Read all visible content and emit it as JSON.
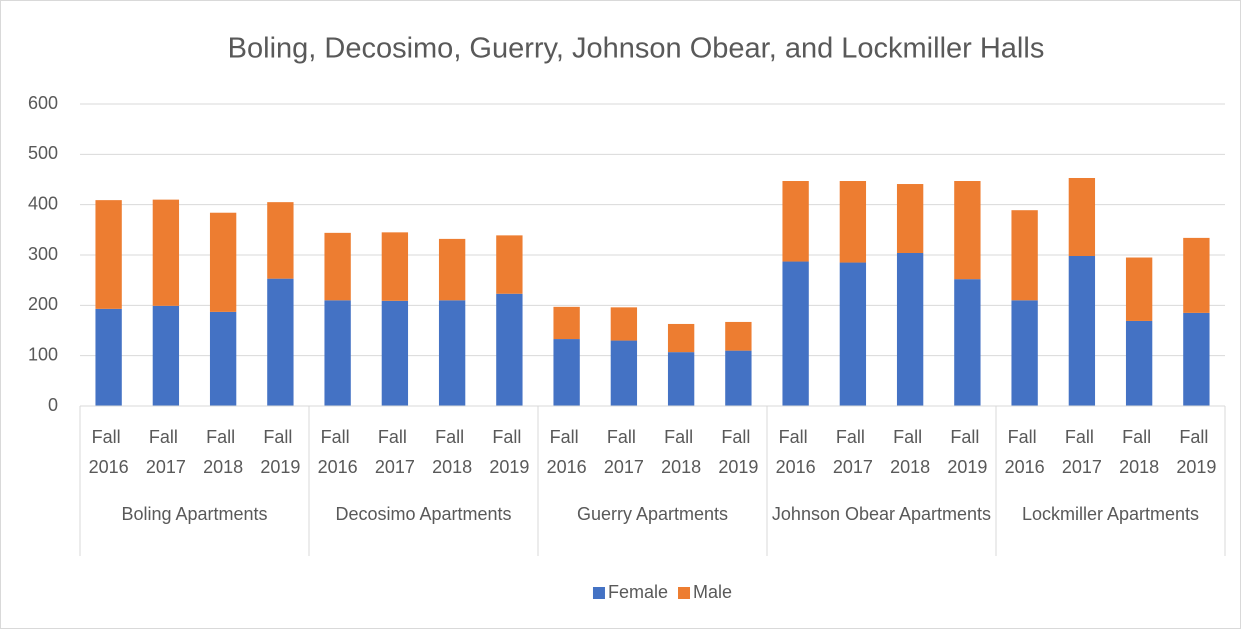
{
  "chart_data": {
    "type": "stacked_bar",
    "title": "Boling, Decosimo, Guerry, Johnson Obear, and Lockmiller Halls",
    "groups": [
      {
        "name": "Boling Apartments",
        "categories": [
          "Fall 2016",
          "Fall 2017",
          "Fall 2018",
          "Fall 2019"
        ]
      },
      {
        "name": "Decosimo Apartments",
        "categories": [
          "Fall 2016",
          "Fall 2017",
          "Fall 2018",
          "Fall 2019"
        ]
      },
      {
        "name": "Guerry Apartments",
        "categories": [
          "Fall 2016",
          "Fall 2017",
          "Fall 2018",
          "Fall 2019"
        ]
      },
      {
        "name": "Johnson Obear Apartments",
        "categories": [
          "Fall 2016",
          "Fall 2017",
          "Fall 2018",
          "Fall 2019"
        ]
      },
      {
        "name": "Lockmiller Apartments",
        "categories": [
          "Fall 2016",
          "Fall 2017",
          "Fall 2018",
          "Fall 2019"
        ]
      }
    ],
    "series": [
      {
        "name": "Female",
        "color": "#4472c4",
        "values": [
          193,
          199,
          187,
          253,
          210,
          209,
          210,
          223,
          133,
          130,
          107,
          110,
          287,
          285,
          304,
          252,
          210,
          298,
          169,
          185
        ]
      },
      {
        "name": "Male",
        "color": "#ed7d31",
        "values": [
          216,
          211,
          197,
          152,
          134,
          136,
          122,
          116,
          64,
          66,
          56,
          57,
          160,
          162,
          137,
          195,
          179,
          155,
          126,
          149
        ]
      }
    ],
    "ylim": [
      0,
      600
    ],
    "yticks": [
      0,
      100,
      200,
      300,
      400,
      500,
      600
    ],
    "grid": true,
    "legend": "bottom"
  }
}
